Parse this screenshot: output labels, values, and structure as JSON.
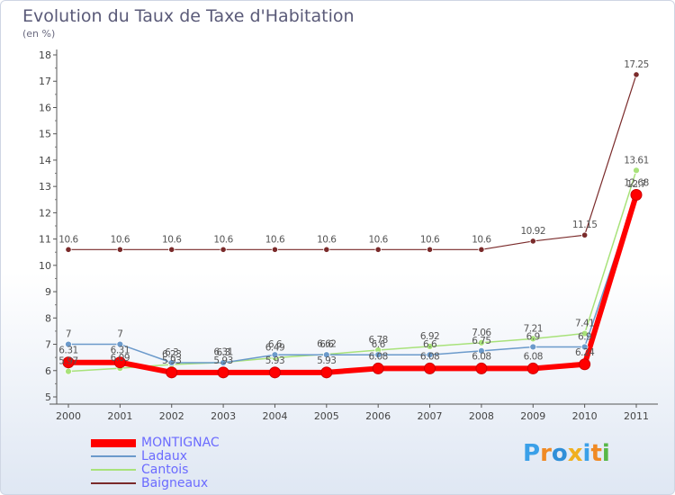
{
  "header": {
    "title": "Evolution du Taux de Taxe d'Habitation",
    "subtitle": "(en %)"
  },
  "chart_data": {
    "type": "line",
    "title": "Evolution du Taux de Taxe d'Habitation",
    "ylabel": "(en %)",
    "xlabel": "",
    "x": [
      "2000",
      "2001",
      "2002",
      "2003",
      "2004",
      "2005",
      "2006",
      "2007",
      "2008",
      "2009",
      "2010",
      "2011"
    ],
    "ylim": [
      5,
      18
    ],
    "yticks": [
      "5",
      "6",
      "7",
      "8",
      "9",
      "10",
      "11",
      "12",
      "13",
      "14",
      "15",
      "16",
      "17",
      "18"
    ],
    "grid": false,
    "legend": "bottom-left",
    "series": [
      {
        "name": "MONTIGNAC",
        "color": "#ff0000",
        "values": [
          6.31,
          6.31,
          5.93,
          5.93,
          5.93,
          5.93,
          6.08,
          6.08,
          6.08,
          6.08,
          6.24,
          12.68
        ],
        "labels": [
          "6.31",
          "6.31",
          "5.93",
          "5.93",
          "5.93",
          "5.93",
          "6.08",
          "6.08",
          "6.08",
          "6.08",
          "6.24",
          "12.68"
        ]
      },
      {
        "name": "Ladaux",
        "color": "#6b9acb",
        "values": [
          7,
          7,
          6.3,
          6.3,
          6.6,
          6.6,
          6.6,
          6.6,
          6.75,
          6.9,
          6.9,
          12.7
        ],
        "labels": [
          "7",
          "7",
          "6.3",
          "6.3",
          "6.6",
          "6.6",
          "6.6",
          "6.6",
          "6.75",
          "6.9",
          "6.9",
          "12.7"
        ]
      },
      {
        "name": "Cantois",
        "color": "#a8e27a",
        "values": [
          5.97,
          6.09,
          6.23,
          6.31,
          6.49,
          6.62,
          6.78,
          6.92,
          7.06,
          7.21,
          7.41,
          13.61
        ],
        "labels": [
          "5.97",
          "6.09",
          "6.23",
          "6.31",
          "6.49",
          "6.62",
          "6.78",
          "6.92",
          "7.06",
          "7.21",
          "7.41",
          "13.61"
        ]
      },
      {
        "name": "Baigneaux",
        "color": "#7a2a2a",
        "values": [
          10.6,
          10.6,
          10.6,
          10.6,
          10.6,
          10.6,
          10.6,
          10.6,
          10.6,
          10.92,
          11.15,
          17.25
        ],
        "labels": [
          "10.6",
          "10.6",
          "10.6",
          "10.6",
          "10.6",
          "10.6",
          "10.6",
          "10.6",
          "10.6",
          "10.92",
          "11.15",
          "17.25"
        ]
      }
    ]
  },
  "logo": {
    "letters": [
      "P",
      "r",
      "o",
      "x",
      "i",
      "t",
      "i"
    ],
    "colors": [
      "#3aa0e8",
      "#f08a24",
      "#2f8fd8",
      "#f0b020",
      "#3aa0e8",
      "#f08a24",
      "#57b847"
    ]
  }
}
